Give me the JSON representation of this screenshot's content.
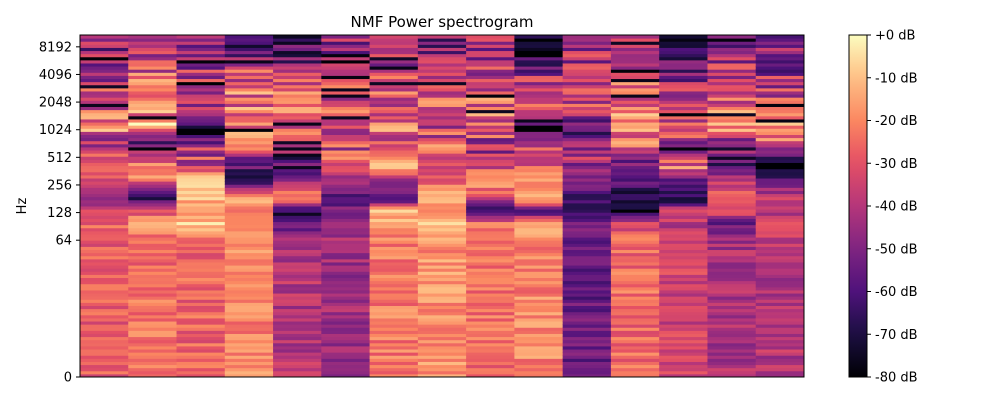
{
  "chart_data": {
    "type": "heatmap",
    "title": "NMF Power spectrogram",
    "xlabel": "",
    "ylabel": "Hz",
    "y_scale": "log2",
    "y_ticks": [
      "0",
      "64",
      "128",
      "256",
      "512",
      "1024",
      "2048",
      "4096",
      "8192"
    ],
    "y_tick_values": [
      0,
      64,
      128,
      256,
      512,
      1024,
      2048,
      4096,
      8192
    ],
    "ylim": [
      0,
      11025
    ],
    "n_frames": 15,
    "colormap": "magma",
    "colorbar": {
      "range_db": [
        -80,
        0
      ],
      "ticks": [
        "+0 dB",
        "-10 dB",
        "-20 dB",
        "-30 dB",
        "-40 dB",
        "-50 dB",
        "-60 dB",
        "-70 dB",
        "-80 dB"
      ],
      "tick_values": [
        0,
        -10,
        -20,
        -30,
        -40,
        -50,
        -60,
        -70,
        -80
      ]
    },
    "frame_profiles_db": [
      [
        [
          60,
          -28
        ],
        [
          100,
          -26
        ],
        [
          130,
          -35
        ],
        [
          180,
          -45
        ],
        [
          300,
          -32
        ],
        [
          400,
          -30
        ],
        [
          700,
          -45
        ],
        [
          1100,
          -22
        ],
        [
          2000,
          -30
        ],
        [
          4000,
          -40
        ],
        [
          8000,
          -48
        ]
      ],
      [
        [
          60,
          -24
        ],
        [
          100,
          -18
        ],
        [
          130,
          -28
        ],
        [
          180,
          -65
        ],
        [
          300,
          -22
        ],
        [
          400,
          -15
        ],
        [
          700,
          -60
        ],
        [
          1100,
          -16
        ],
        [
          2000,
          -26
        ],
        [
          4000,
          -30
        ],
        [
          8000,
          -40
        ]
      ],
      [
        [
          60,
          -26
        ],
        [
          100,
          -8
        ],
        [
          130,
          -20
        ],
        [
          180,
          -12
        ],
        [
          300,
          -10
        ],
        [
          400,
          -35
        ],
        [
          700,
          -40
        ],
        [
          1100,
          -70
        ],
        [
          2000,
          -35
        ],
        [
          4000,
          -38
        ],
        [
          8000,
          -50
        ]
      ],
      [
        [
          60,
          -20
        ],
        [
          100,
          -14
        ],
        [
          130,
          -30
        ],
        [
          180,
          -4
        ],
        [
          300,
          -72
        ],
        [
          400,
          -60
        ],
        [
          700,
          -22
        ],
        [
          1100,
          -30
        ],
        [
          2000,
          -24
        ],
        [
          4000,
          -30
        ],
        [
          8000,
          -58
        ]
      ],
      [
        [
          60,
          -40
        ],
        [
          100,
          -60
        ],
        [
          130,
          -72
        ],
        [
          180,
          -20
        ],
        [
          300,
          -45
        ],
        [
          400,
          -70
        ],
        [
          700,
          -40
        ],
        [
          1100,
          -25
        ],
        [
          2000,
          -18
        ],
        [
          4000,
          -40
        ],
        [
          8000,
          -60
        ]
      ],
      [
        [
          60,
          -44
        ],
        [
          100,
          -40
        ],
        [
          130,
          -50
        ],
        [
          180,
          -60
        ],
        [
          300,
          -45
        ],
        [
          400,
          -22
        ],
        [
          700,
          -35
        ],
        [
          1100,
          -28
        ],
        [
          2000,
          -30
        ],
        [
          4000,
          -40
        ],
        [
          8000,
          -45
        ]
      ],
      [
        [
          60,
          -22
        ],
        [
          100,
          -18
        ],
        [
          130,
          -6
        ],
        [
          180,
          -60
        ],
        [
          300,
          -40
        ],
        [
          400,
          -20
        ],
        [
          700,
          -40
        ],
        [
          1100,
          -20
        ],
        [
          2000,
          -30
        ],
        [
          4000,
          -35
        ],
        [
          8000,
          -45
        ]
      ],
      [
        [
          60,
          -18
        ],
        [
          100,
          -12
        ],
        [
          130,
          -20
        ],
        [
          180,
          -8
        ],
        [
          300,
          -30
        ],
        [
          400,
          -35
        ],
        [
          700,
          -28
        ],
        [
          1100,
          -35
        ],
        [
          2000,
          -30
        ],
        [
          4000,
          -40
        ],
        [
          8000,
          -50
        ]
      ],
      [
        [
          60,
          -24
        ],
        [
          100,
          -25
        ],
        [
          130,
          -70
        ],
        [
          180,
          -38
        ],
        [
          300,
          -10
        ],
        [
          400,
          -25
        ],
        [
          700,
          -45
        ],
        [
          1100,
          -28
        ],
        [
          2000,
          -25
        ],
        [
          4000,
          -40
        ],
        [
          8000,
          -45
        ]
      ],
      [
        [
          60,
          -20
        ],
        [
          100,
          -10
        ],
        [
          130,
          -60
        ],
        [
          180,
          -12
        ],
        [
          300,
          -18
        ],
        [
          400,
          -28
        ],
        [
          700,
          -30
        ],
        [
          1100,
          -75
        ],
        [
          2000,
          -30
        ],
        [
          4000,
          -45
        ],
        [
          8000,
          -78
        ]
      ],
      [
        [
          60,
          -55
        ],
        [
          100,
          -50
        ],
        [
          130,
          -68
        ],
        [
          180,
          -65
        ],
        [
          300,
          -50
        ],
        [
          400,
          -45
        ],
        [
          700,
          -50
        ],
        [
          1100,
          -60
        ],
        [
          2000,
          -35
        ],
        [
          4000,
          -40
        ],
        [
          8000,
          -45
        ]
      ],
      [
        [
          60,
          -25
        ],
        [
          100,
          -35
        ],
        [
          130,
          -75
        ],
        [
          180,
          -72
        ],
        [
          300,
          -55
        ],
        [
          400,
          -60
        ],
        [
          700,
          -20
        ],
        [
          1100,
          -25
        ],
        [
          2000,
          -22
        ],
        [
          4000,
          -30
        ],
        [
          8000,
          -40
        ]
      ],
      [
        [
          60,
          -35
        ],
        [
          100,
          -40
        ],
        [
          130,
          -30
        ],
        [
          180,
          -70
        ],
        [
          300,
          -55
        ],
        [
          400,
          -28
        ],
        [
          700,
          -45
        ],
        [
          1100,
          -30
        ],
        [
          2000,
          -40
        ],
        [
          4000,
          -50
        ],
        [
          8000,
          -60
        ]
      ],
      [
        [
          60,
          -42
        ],
        [
          100,
          -55
        ],
        [
          130,
          -28
        ],
        [
          180,
          -25
        ],
        [
          300,
          -40
        ],
        [
          400,
          -60
        ],
        [
          700,
          -55
        ],
        [
          1100,
          -18
        ],
        [
          2000,
          -30
        ],
        [
          4000,
          -40
        ],
        [
          8000,
          -50
        ]
      ],
      [
        [
          60,
          -40
        ],
        [
          100,
          -28
        ],
        [
          130,
          -40
        ],
        [
          180,
          -35
        ],
        [
          300,
          -60
        ],
        [
          400,
          -70
        ],
        [
          700,
          -40
        ],
        [
          1100,
          -12
        ],
        [
          2000,
          -30
        ],
        [
          4000,
          -45
        ],
        [
          8000,
          -50
        ]
      ]
    ]
  }
}
